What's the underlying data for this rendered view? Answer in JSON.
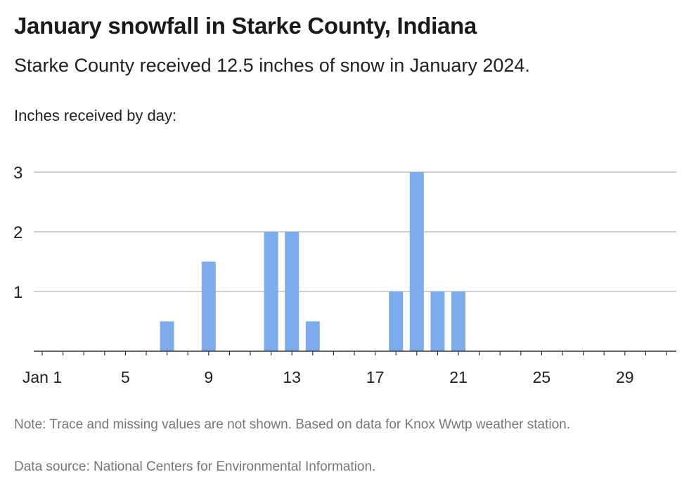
{
  "header": {
    "title": "January snowfall in Starke County, Indiana",
    "subtitle": "Starke County received 12.5 inches of snow in January 2024.",
    "axis_caption": "Inches received by day:"
  },
  "footer": {
    "note": "Note: Trace and missing values are not shown. Based on data for Knox Wwtp weather station.",
    "source": "Data source: National Centers for Environmental Information."
  },
  "colors": {
    "bar": "#7eabec",
    "grid": "#b5b5b5",
    "axis": "#333333"
  },
  "chart_data": {
    "type": "bar",
    "title": "January snowfall in Starke County, Indiana",
    "ylabel": "Inches received by day:",
    "xlabel": "",
    "x_domain": [
      1,
      31
    ],
    "ylim": [
      0,
      3
    ],
    "y_ticks": [
      1,
      2,
      3
    ],
    "x_ticks": [
      {
        "day": 1,
        "label": "Jan 1"
      },
      {
        "day": 5,
        "label": "5"
      },
      {
        "day": 9,
        "label": "9"
      },
      {
        "day": 13,
        "label": "13"
      },
      {
        "day": 17,
        "label": "17"
      },
      {
        "day": 21,
        "label": "21"
      },
      {
        "day": 25,
        "label": "25"
      },
      {
        "day": 29,
        "label": "29"
      }
    ],
    "series": [
      {
        "points": [
          {
            "day": 7,
            "value": 0.5
          },
          {
            "day": 9,
            "value": 1.5
          },
          {
            "day": 12,
            "value": 2
          },
          {
            "day": 13,
            "value": 2
          },
          {
            "day": 14,
            "value": 0.5
          },
          {
            "day": 18,
            "value": 1
          },
          {
            "day": 19,
            "value": 3
          },
          {
            "day": 20,
            "value": 1
          },
          {
            "day": 21,
            "value": 1
          }
        ]
      }
    ],
    "grid": true
  }
}
